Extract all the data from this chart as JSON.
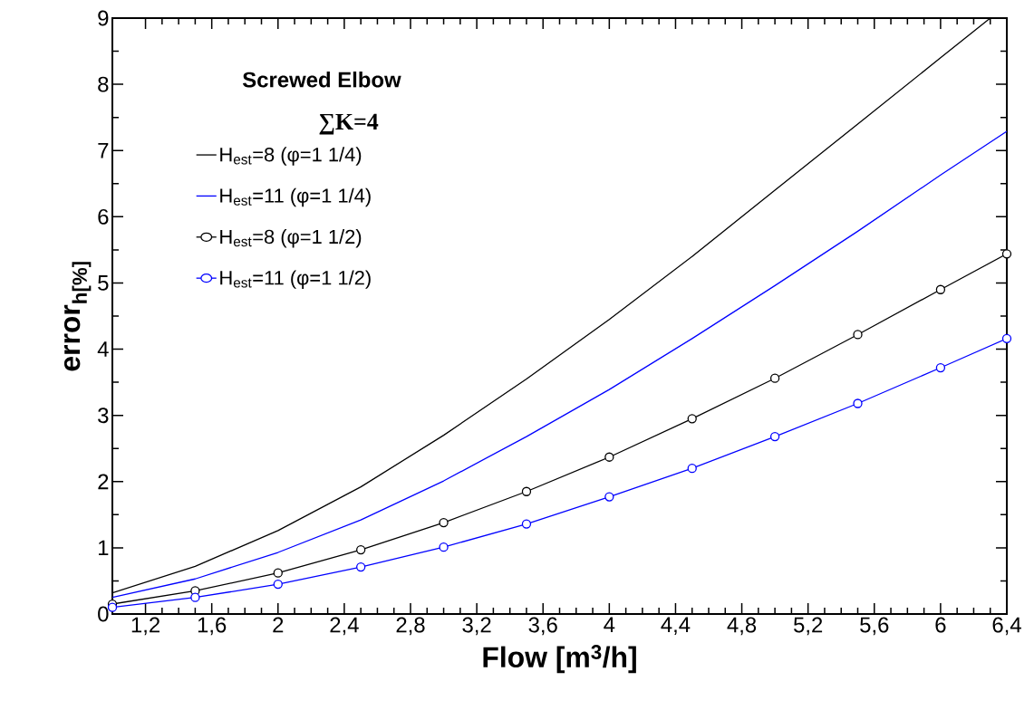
{
  "chart_data": {
    "type": "line",
    "title": "Screwed Elbow",
    "subtitle": "∑K=4",
    "xlabel": "Flow  [m$^{3}$/h]",
    "ylabel": "error$_{h[%]}$",
    "xlim": [
      1,
      6.4
    ],
    "ylim": [
      0,
      9
    ],
    "xticks": [
      {
        "value": 1.2,
        "label": "1,2"
      },
      {
        "value": 1.6,
        "label": "1,6"
      },
      2,
      {
        "value": 2.4,
        "label": "2,4"
      },
      {
        "value": 2.8,
        "label": "2,8"
      },
      {
        "value": 3.2,
        "label": "3,2"
      },
      {
        "value": 3.6,
        "label": "3,6"
      },
      4,
      {
        "value": 4.4,
        "label": "4,4"
      },
      {
        "value": 4.8,
        "label": "4,8"
      },
      {
        "value": 5.2,
        "label": "5,2"
      },
      {
        "value": 5.6,
        "label": "5,6"
      },
      6,
      {
        "value": 6.4,
        "label": "6,4"
      }
    ],
    "yticks": [
      0,
      1,
      2,
      3,
      4,
      5,
      6,
      7,
      8,
      9
    ],
    "grid": false,
    "legend": "top left",
    "line_style": "solid",
    "series": [
      {
        "name": "H$_{est}$=8  (φ=1 1/4)",
        "color": "#000000",
        "marker": "none",
        "x": [
          1,
          1.5,
          2,
          2.5,
          3,
          3.5,
          4,
          4.5,
          5,
          5.5,
          6,
          6.3
        ],
        "values": [
          0.32,
          0.72,
          1.26,
          1.92,
          2.7,
          3.55,
          4.45,
          5.4,
          6.4,
          7.4,
          8.4,
          9.0
        ]
      },
      {
        "name": "H$_{est}$=11 (φ=1 1/4)",
        "color": "#0000ff",
        "marker": "none",
        "x": [
          1,
          1.5,
          2,
          2.5,
          3,
          3.5,
          4,
          4.5,
          5,
          5.5,
          6,
          6.4
        ],
        "values": [
          0.25,
          0.53,
          0.93,
          1.42,
          2.01,
          2.68,
          3.39,
          4.16,
          4.96,
          5.78,
          6.63,
          7.29
        ]
      },
      {
        "name": "H$_{est}$=8 (φ=1 1/2)",
        "color": "#000000",
        "marker": "circle",
        "x": [
          1,
          1.5,
          2,
          2.5,
          3,
          3.5,
          4,
          4.5,
          5,
          5.5,
          6,
          6.4
        ],
        "values": [
          0.15,
          0.35,
          0.62,
          0.97,
          1.38,
          1.85,
          2.37,
          2.95,
          3.56,
          4.22,
          4.9,
          5.44
        ]
      },
      {
        "name": "H$_{est}$=11 (φ=1 1/2)",
        "color": "#0000ff",
        "marker": "circle",
        "x": [
          1,
          1.5,
          2,
          2.5,
          3,
          3.5,
          4,
          4.5,
          5,
          5.5,
          6,
          6.4
        ],
        "values": [
          0.1,
          0.25,
          0.45,
          0.71,
          1.01,
          1.36,
          1.77,
          2.2,
          2.68,
          3.18,
          3.72,
          4.16
        ]
      }
    ]
  }
}
